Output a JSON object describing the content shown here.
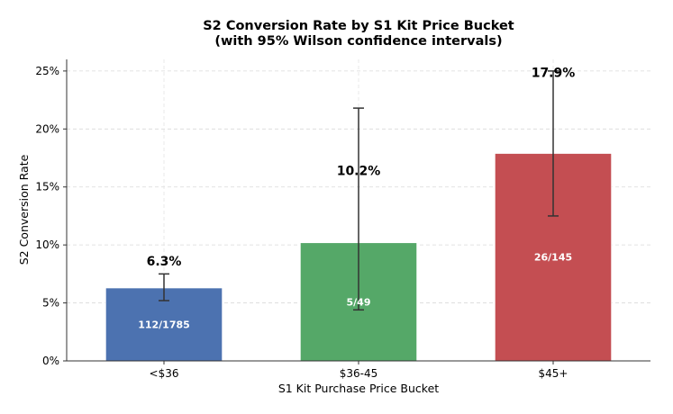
{
  "chart_data": {
    "type": "bar",
    "title": "S2 Conversion Rate by S1 Kit Price Bucket",
    "subtitle": "(with 95% Wilson confidence intervals)",
    "xlabel": "S1 Kit Purchase Price Bucket",
    "ylabel": "S2 Conversion Rate",
    "ylim": [
      0,
      0.26
    ],
    "yticks": [
      0,
      0.05,
      0.1,
      0.15,
      0.2,
      0.25
    ],
    "ytick_labels": [
      "0%",
      "5%",
      "10%",
      "15%",
      "20%",
      "25%"
    ],
    "grid": true,
    "categories": [
      "<$36",
      "$36-45",
      "$45+"
    ],
    "values": [
      0.063,
      0.102,
      0.179
    ],
    "value_labels": [
      "6.3%",
      "10.2%",
      "17.9%"
    ],
    "counts": [
      "112/1785",
      "5/49",
      "26/145"
    ],
    "ci_low": [
      0.052,
      0.044,
      0.125
    ],
    "ci_high": [
      0.075,
      0.218,
      0.25
    ],
    "colors": [
      "#4c72b0",
      "#55a868",
      "#c44e52"
    ]
  }
}
